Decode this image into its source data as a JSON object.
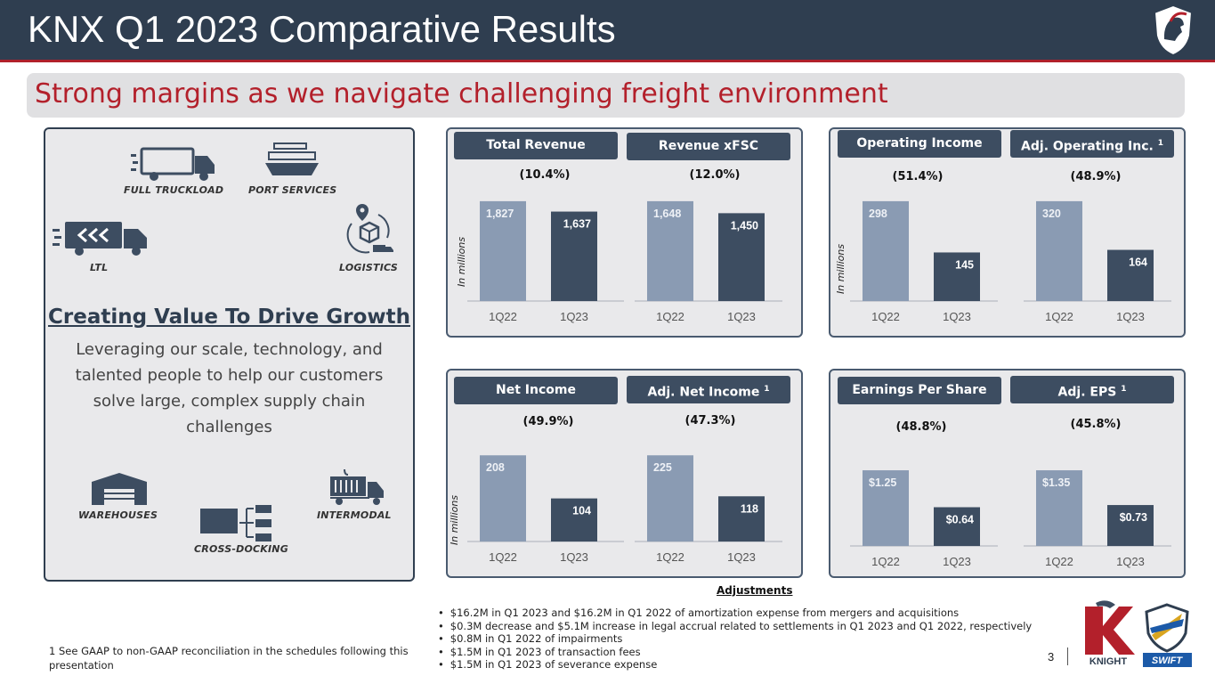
{
  "header": {
    "title": "KNX Q1 2023 Comparative Results",
    "subtitle": "Strong margins as we navigate challenging freight environment"
  },
  "colors": {
    "header_bg": "#2f3e50",
    "accent_red": "#b3202b",
    "bar_1q22": "#8a9bb3",
    "bar_1q23": "#3d4d61"
  },
  "left_panel": {
    "services": [
      "FULL TRUCKLOAD",
      "PORT SERVICES",
      "LTL",
      "LOGISTICS",
      "WAREHOUSES",
      "INTERMODAL",
      "CROSS-DOCKING"
    ],
    "heading": "Creating Value To Drive Growth",
    "body": "Leveraging our scale, technology, and talented people to help our customers solve large, complex supply chain challenges"
  },
  "units_label": "In millions",
  "footnote_marker": "1",
  "chart_data": [
    {
      "type": "bar",
      "title": "Total Revenue",
      "change": "(10.4%)",
      "categories": [
        "1Q22",
        "1Q23"
      ],
      "values": [
        1827,
        1637
      ],
      "labels": [
        "1,827",
        "1,637"
      ],
      "ylabel": "In millions"
    },
    {
      "type": "bar",
      "title": "Revenue xFSC",
      "change": "(12.0%)",
      "categories": [
        "1Q22",
        "1Q23"
      ],
      "values": [
        1648,
        1450
      ],
      "labels": [
        "1,648",
        "1,450"
      ],
      "ylabel": "In millions"
    },
    {
      "type": "bar",
      "title": "Operating Income",
      "change": "(51.4%)",
      "categories": [
        "1Q22",
        "1Q23"
      ],
      "values": [
        298,
        145
      ],
      "labels": [
        "298",
        "145"
      ],
      "ylabel": "In millions"
    },
    {
      "type": "bar",
      "title": "Adj. Operating Inc.",
      "footnote": "1",
      "change": "(48.9%)",
      "categories": [
        "1Q22",
        "1Q23"
      ],
      "values": [
        320,
        164
      ],
      "labels": [
        "320",
        "164"
      ],
      "ylabel": "In millions"
    },
    {
      "type": "bar",
      "title": "Net Income",
      "change": "(49.9%)",
      "categories": [
        "1Q22",
        "1Q23"
      ],
      "values": [
        208,
        104
      ],
      "labels": [
        "208",
        "104"
      ],
      "ylabel": "In millions"
    },
    {
      "type": "bar",
      "title": "Adj. Net Income",
      "footnote": "1",
      "change": "(47.3%)",
      "categories": [
        "1Q22",
        "1Q23"
      ],
      "values": [
        225,
        118
      ],
      "labels": [
        "225",
        "118"
      ],
      "ylabel": "In millions"
    },
    {
      "type": "bar",
      "title": "Earnings Per Share",
      "change": "(48.8%)",
      "categories": [
        "1Q22",
        "1Q23"
      ],
      "values": [
        1.25,
        0.64
      ],
      "labels": [
        "$1.25",
        "$0.64"
      ]
    },
    {
      "type": "bar",
      "title": "Adj. EPS",
      "footnote": "1",
      "change": "(45.8%)",
      "categories": [
        "1Q22",
        "1Q23"
      ],
      "values": [
        1.35,
        0.73
      ],
      "labels": [
        "$1.35",
        "$0.73"
      ]
    }
  ],
  "adjustments": {
    "title": "Adjustments",
    "items": [
      "$16.2M in Q1 2023 and $16.2M in Q1 2022 of amortization expense from mergers and acquisitions",
      "$0.3M decrease and $5.1M increase in legal accrual related to settlements in Q1 2023 and Q1 2022, respectively",
      "$0.8M in Q1 2022 of impairments",
      "$1.5M in Q1 2023 of transaction fees",
      "$1.5M in Q1 2023 of severance expense"
    ]
  },
  "footnote": "1   See GAAP to non-GAAP reconciliation in the schedules following this presentation",
  "page_number": "3",
  "logos": [
    "KNIGHT",
    "SWIFT"
  ]
}
